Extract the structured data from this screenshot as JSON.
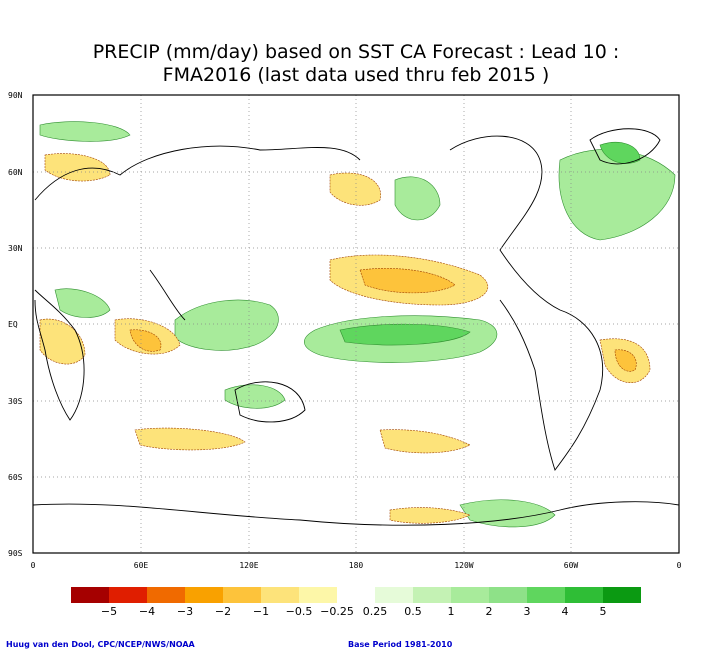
{
  "title_line1": "PRECIP (mm/day) based on SST CA Forecast : Lead 10 :",
  "title_line2": "FMA2016 (last data used thru feb 2015 )",
  "lat_labels": [
    "90N",
    "60N",
    "30N",
    "EQ",
    "30S",
    "60S",
    "90S"
  ],
  "lon_labels": [
    "0",
    "60E",
    "120E",
    "180",
    "120W",
    "60W",
    "0"
  ],
  "legend": {
    "colors": [
      "#a50000",
      "#e01e00",
      "#f06a00",
      "#f9a100",
      "#fdc33b",
      "#fde37a",
      "#fdf7a8",
      "#ffffff",
      "#e6fbd9",
      "#c4f2b4",
      "#a8eb9b",
      "#8ee188",
      "#5fd65e",
      "#2fbe36",
      "#0b9a12"
    ],
    "labels": [
      "−5",
      "−4",
      "−3",
      "−2",
      "−1",
      "−0.5",
      "−0.25",
      "0.25",
      "0.5",
      "1",
      "2",
      "3",
      "4",
      "5"
    ]
  },
  "credit": "Huug van den Dool, CPC/NCEP/NWS/NOAA",
  "base_period": "Base Period 1981-2010"
}
